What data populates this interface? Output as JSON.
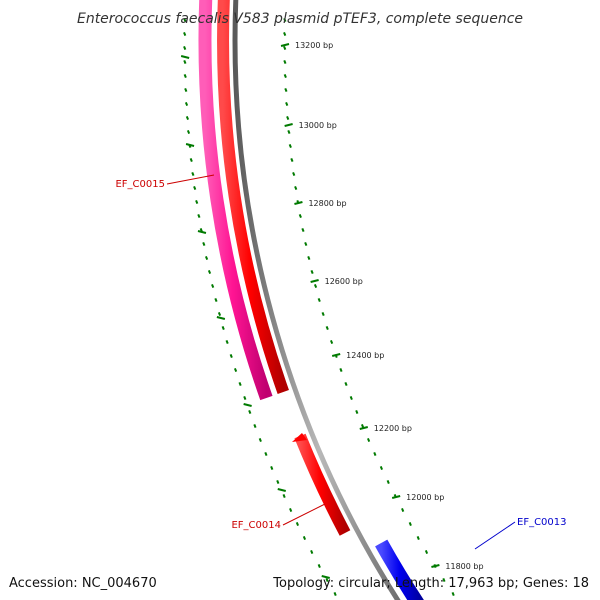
{
  "title": "Enterococcus faecalis V583 plasmid pTEF3, complete sequence",
  "footer": {
    "accession": "Accession: NC_004670",
    "summary": "Topology: circular; Length: 17,963 bp; Genes: 18"
  },
  "colors": {
    "forward_gene": "#ff0000",
    "reverse_gene": "#ff1493",
    "ef_c0013_gene": "#0000ee",
    "backbone": "#888888",
    "tick": "#007a00",
    "label_red": "#cc0000",
    "label_blue": "#0000cc"
  },
  "ticks": [
    {
      "label": "13200 bp"
    },
    {
      "label": "13000 bp"
    },
    {
      "label": "12800 bp"
    },
    {
      "label": "12600 bp"
    },
    {
      "label": "12400 bp"
    },
    {
      "label": "12200 bp"
    },
    {
      "label": "12000 bp"
    },
    {
      "label": "11800 bp"
    }
  ],
  "genes": [
    {
      "name": "EF_C0015",
      "strand": "reverse",
      "color_key": "reverse_gene"
    },
    {
      "name": "EF_C0014",
      "strand": "forward",
      "color_key": "forward_gene"
    },
    {
      "name": "EF_C0013",
      "strand": "forward",
      "color_key": "ef_c0013_gene"
    }
  ]
}
